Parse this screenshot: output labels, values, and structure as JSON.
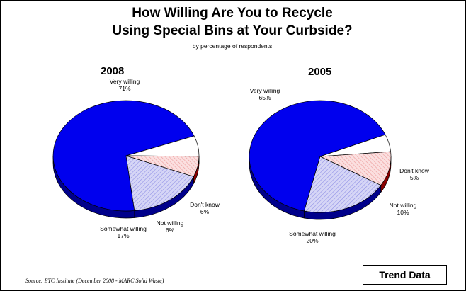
{
  "title_line1": "How Willing Are You to Recycle",
  "title_line2": "Using Special Bins at Your Curbside?",
  "subtitle": "by percentage of respondents",
  "source": "Source:  ETC Institute (December 2008 - MARC Solid Waste)",
  "trend_label": "Trend Data",
  "colors": {
    "very_willing": "#0000ee",
    "somewhat_willing": "#c8c8f2",
    "not_willing": "#f7c6c6",
    "dont_know": "#ffffff"
  },
  "chart_data": [
    {
      "type": "pie",
      "title": "2008",
      "slices": [
        {
          "label": "Very willing",
          "value": 71,
          "display": "71%"
        },
        {
          "label": "Don't know",
          "value": 6,
          "display": "6%"
        },
        {
          "label": "Not willing",
          "value": 6,
          "display": "6%"
        },
        {
          "label": "Somewhat willing",
          "value": 17,
          "display": "17%"
        }
      ]
    },
    {
      "type": "pie",
      "title": "2005",
      "slices": [
        {
          "label": "Very willing",
          "value": 65,
          "display": "65%"
        },
        {
          "label": "Don't know",
          "value": 5,
          "display": "5%"
        },
        {
          "label": "Not willing",
          "value": 10,
          "display": "10%"
        },
        {
          "label": "Somewhat willing",
          "value": 20,
          "display": "20%"
        }
      ]
    }
  ]
}
